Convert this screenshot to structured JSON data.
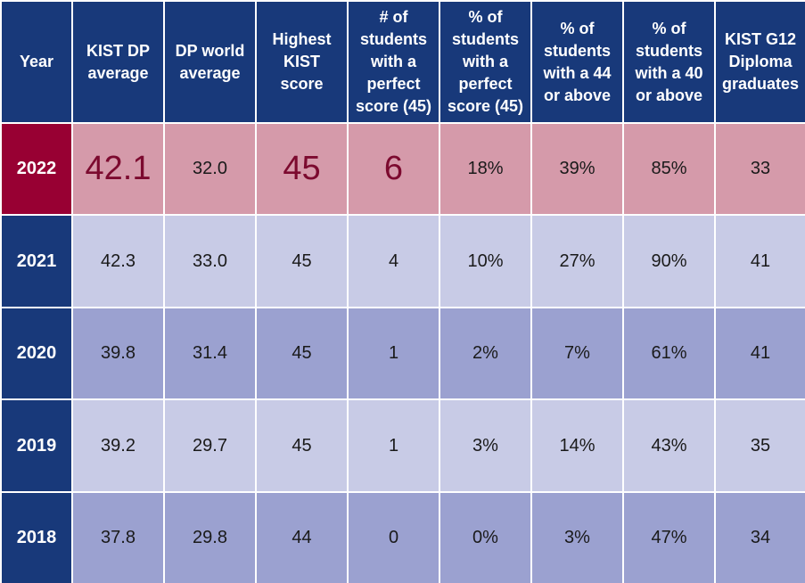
{
  "table": {
    "headers": [
      "Year",
      "KIST DP\naverage",
      "DP world\naverage",
      "Highest\nKIST\nscore",
      "# of\nstudents\nwith a\nperfect\nscore (45)",
      "% of\nstudents\nwith a\nperfect\nscore (45)",
      "% of\nstudents\nwith a 44\nor above",
      "% of\nstudents\nwith a 40\nor above",
      "KIST G12\nDiploma\ngraduates"
    ],
    "rows": [
      {
        "year": "2022",
        "cells": [
          "42.1",
          "32.0",
          "45",
          "6",
          "18%",
          "39%",
          "85%",
          "33"
        ]
      },
      {
        "year": "2021",
        "cells": [
          "42.3",
          "33.0",
          "45",
          "4",
          "10%",
          "27%",
          "90%",
          "41"
        ]
      },
      {
        "year": "2020",
        "cells": [
          "39.8",
          "31.4",
          "45",
          "1",
          "2%",
          "7%",
          "61%",
          "41"
        ]
      },
      {
        "year": "2019",
        "cells": [
          "39.2",
          "29.7",
          "45",
          "1",
          "3%",
          "14%",
          "43%",
          "35"
        ]
      },
      {
        "year": "2018",
        "cells": [
          "37.8",
          "29.8",
          "44",
          "0",
          "0%",
          "3%",
          "47%",
          "34"
        ]
      }
    ]
  },
  "colors": {
    "header_bg": "#18397a",
    "highlight_year_bg": "#980033",
    "highlight_row_bg": "#d59aaa",
    "light_row_bg": "#c8cbe6",
    "dark_row_bg": "#9ba1d0",
    "emphasis_text": "#7c0a2f"
  }
}
